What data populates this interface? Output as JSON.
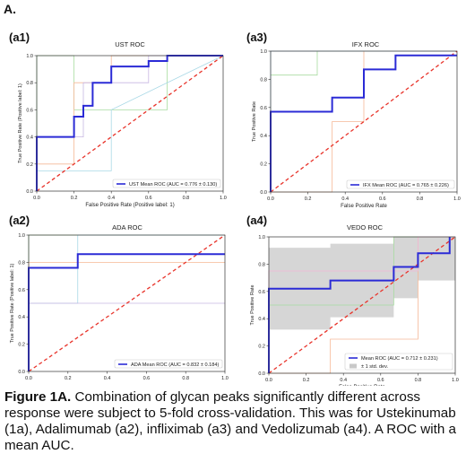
{
  "figure_label": "A.",
  "caption": {
    "prefix": "Figure 1A.",
    "text": " Combination of glycan peaks significantly different across response were subject to 5-fold cross-validation. This was for Ustekinumab (1a), Adalimumab (a2), infliximab (a3) and Vedolizumab (a4). A ROC with a mean AUC."
  },
  "colors": {
    "mean_roc": "#2b2bd6",
    "chance": "#e8332a",
    "fold_green": "#a8dca0",
    "fold_orange": "#f5b896",
    "fold_purple": "#c7b6e2",
    "fold_cyan": "#a8d8e6",
    "fold_pink": "#f0b8d8",
    "std_band": "#c8c8c8"
  },
  "chart_data": [
    {
      "panel_label": "(a1)",
      "type": "line",
      "title": "UST ROC",
      "xlabel": "False Positive Rate (Positive label: 1)",
      "ylabel": "True Positive Rate (Positive label: 1)",
      "xlim": [
        0,
        1
      ],
      "ylim": [
        0,
        1
      ],
      "xticks": [
        "0.0",
        "0.2",
        "0.4",
        "0.6",
        "0.8",
        "1.0"
      ],
      "yticks": [
        "0.0",
        "0.2",
        "0.4",
        "0.6",
        "0.8",
        "1.0"
      ],
      "legend": [
        "UST Mean ROC (AUC = 0.776 ± 0.130)"
      ],
      "legend_position": "lower right",
      "mean_roc": {
        "x": [
          0,
          0,
          0.2,
          0.2,
          0.25,
          0.25,
          0.3,
          0.3,
          0.4,
          0.4,
          0.6,
          0.6,
          0.7,
          0.7,
          1.0
        ],
        "y": [
          0,
          0.4,
          0.4,
          0.55,
          0.55,
          0.63,
          0.63,
          0.8,
          0.8,
          0.92,
          0.92,
          0.96,
          0.96,
          1.0,
          1.0
        ]
      },
      "folds": [
        {
          "color": "fold_green",
          "x": [
            0,
            0,
            0.2,
            0.2,
            0.7,
            0.7,
            1.0
          ],
          "y": [
            0,
            1.0,
            1.0,
            0.6,
            0.6,
            1.0,
            1.0
          ]
        },
        {
          "color": "fold_orange",
          "x": [
            0,
            0,
            0.2,
            0.2,
            0.4,
            0.4,
            1.0
          ],
          "y": [
            0,
            0.2,
            0.2,
            0.8,
            0.8,
            1.0,
            1.0
          ]
        },
        {
          "color": "fold_purple",
          "x": [
            0,
            0,
            0.25,
            0.25,
            0.6,
            0.6,
            1.0
          ],
          "y": [
            0,
            0.4,
            0.4,
            0.8,
            0.8,
            1.0,
            1.0
          ]
        },
        {
          "color": "fold_cyan",
          "x": [
            0,
            0,
            0.4,
            0.4,
            1.0
          ],
          "y": [
            0,
            0.15,
            0.15,
            0.6,
            1.0
          ]
        }
      ],
      "show_band": false,
      "chance_line": true
    },
    {
      "panel_label": "(a3)",
      "type": "line",
      "title": "IFX ROC",
      "xlabel": "False Positive Rate",
      "ylabel": "True Positive Rate",
      "xlim": [
        0,
        1
      ],
      "ylim": [
        0,
        1
      ],
      "xticks": [
        "0.0",
        "0.2",
        "0.4",
        "0.6",
        "0.8",
        "1.0"
      ],
      "yticks": [
        "0.0",
        "0.2",
        "0.4",
        "0.6",
        "0.8",
        "1.0"
      ],
      "legend": [
        "IFX Mean ROC (AUC = 0.765 ± 0.226)"
      ],
      "legend_position": "lower right",
      "mean_roc": {
        "x": [
          0,
          0,
          0.33,
          0.33,
          0.5,
          0.5,
          0.67,
          0.67,
          1.0
        ],
        "y": [
          0,
          0.57,
          0.57,
          0.67,
          0.67,
          0.87,
          0.87,
          0.97,
          0.97
        ]
      },
      "folds": [
        {
          "color": "fold_green",
          "x": [
            0,
            0,
            0.25,
            0.25,
            1.0
          ],
          "y": [
            0,
            0.83,
            0.83,
            1.0,
            1.0
          ]
        },
        {
          "color": "fold_orange",
          "x": [
            0,
            0.33,
            0.33,
            0.5,
            0.5,
            1.0
          ],
          "y": [
            0,
            0,
            0.5,
            0.5,
            1.0,
            1.0
          ]
        },
        {
          "color": "fold_purple",
          "x": [
            0,
            0,
            0.5,
            0.5,
            1.0
          ],
          "y": [
            0,
            1.0,
            1.0,
            1.0,
            1.0
          ]
        },
        {
          "color": "fold_cyan",
          "x": [
            0,
            0,
            0.67,
            0.67,
            1.0
          ],
          "y": [
            0,
            1.0,
            1.0,
            1.0,
            1.0
          ]
        }
      ],
      "show_band": false,
      "chance_line": true
    },
    {
      "panel_label": "(a2)",
      "type": "line",
      "title": "ADA ROC",
      "xlabel": "",
      "ylabel": "True Positive Rate (Positive label: 1)",
      "xlim": [
        0,
        1
      ],
      "ylim": [
        0,
        1
      ],
      "xticks": [
        "0.0",
        "0.2",
        "0.4",
        "0.6",
        "0.8",
        "1.0"
      ],
      "yticks": [
        "0.0",
        "0.2",
        "0.4",
        "0.6",
        "0.8",
        "1.0"
      ],
      "legend": [
        "ADA Mean ROC (AUC = 0.832 ± 0.184)"
      ],
      "legend_position": "lower right",
      "mean_roc": {
        "x": [
          0,
          0,
          0.25,
          0.25,
          1.0
        ],
        "y": [
          0,
          0.76,
          0.76,
          0.86,
          0.86
        ]
      },
      "folds": [
        {
          "color": "fold_green",
          "x": [
            0,
            0,
            0.25,
            0.25,
            1.0
          ],
          "y": [
            0,
            1.0,
            1.0,
            1.0,
            1.0
          ]
        },
        {
          "color": "fold_orange",
          "x": [
            0,
            0,
            1.0
          ],
          "y": [
            0,
            0.8,
            0.8
          ]
        },
        {
          "color": "fold_cyan",
          "x": [
            0,
            0,
            0.25,
            0.25,
            1.0
          ],
          "y": [
            0,
            0.5,
            0.5,
            1.0,
            1.0
          ]
        },
        {
          "color": "fold_purple",
          "x": [
            0,
            0,
            1.0
          ],
          "y": [
            0,
            0.5,
            0.5
          ]
        }
      ],
      "show_band": false,
      "chance_line": true
    },
    {
      "panel_label": "(a4)",
      "type": "line",
      "title": "VEDO ROC",
      "xlabel": "False Positive Rate",
      "ylabel": "True Positive Rate",
      "xlim": [
        0,
        1
      ],
      "ylim": [
        0,
        1
      ],
      "xticks": [
        "0.0",
        "0.2",
        "0.4",
        "0.6",
        "0.8",
        "1.0"
      ],
      "yticks": [
        "0.0",
        "0.2",
        "0.4",
        "0.6",
        "0.8",
        "1.0"
      ],
      "legend": [
        "Mean ROC (AUC = 0.712 ± 0.231)",
        "± 1 std. dev."
      ],
      "legend_position": "lower right",
      "mean_roc": {
        "x": [
          0,
          0,
          0.33,
          0.33,
          0.67,
          0.67,
          0.8,
          0.8,
          0.97,
          0.97
        ],
        "y": [
          0,
          0.62,
          0.62,
          0.68,
          0.68,
          0.78,
          0.78,
          0.88,
          0.88,
          1.0
        ]
      },
      "band_x": [
        0,
        0.33,
        0.33,
        0.67,
        0.67,
        0.8,
        0.8,
        1.0
      ],
      "band_upper": [
        0.92,
        0.92,
        0.95,
        0.95,
        1.0,
        1.0,
        1.0,
        1.0
      ],
      "band_lower": [
        0.32,
        0.32,
        0.41,
        0.41,
        0.55,
        0.55,
        0.68,
        0.68
      ],
      "folds": [
        {
          "color": "fold_orange",
          "x": [
            0,
            0.33,
            0.33,
            0.8,
            0.8,
            1.0
          ],
          "y": [
            0,
            0,
            0.25,
            0.25,
            1.0,
            1.0
          ]
        },
        {
          "color": "fold_green",
          "x": [
            0,
            0,
            0.67,
            0.67,
            1.0
          ],
          "y": [
            0,
            0.5,
            0.5,
            1.0,
            1.0
          ]
        },
        {
          "color": "fold_pink",
          "x": [
            0,
            0,
            0.8,
            0.8,
            1.0
          ],
          "y": [
            0,
            0.75,
            0.75,
            1.0,
            1.0
          ]
        }
      ],
      "show_band": true,
      "chance_line": true
    }
  ]
}
